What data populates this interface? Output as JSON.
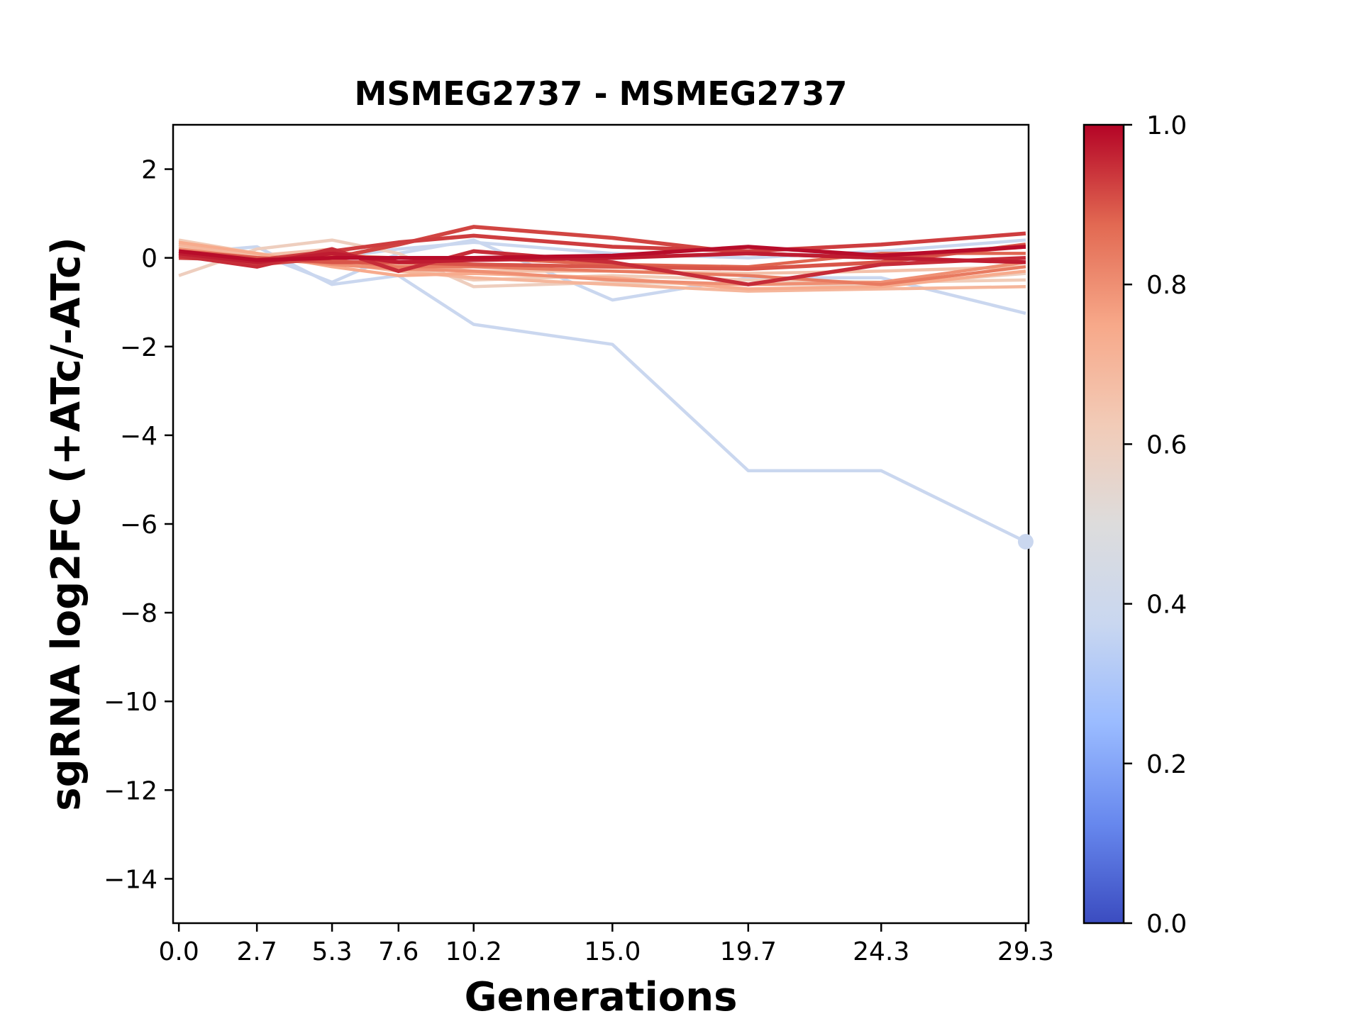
{
  "chart_data": {
    "type": "line",
    "title": "MSMEG2737 - MSMEG2737",
    "xlabel": "Generations",
    "ylabel": "sgRNA log2FC (+ATc/-ATc)",
    "x": [
      0.0,
      2.7,
      5.3,
      7.6,
      10.2,
      15.0,
      19.7,
      24.3,
      29.3
    ],
    "x_tick_labels": [
      "0.0",
      "2.7",
      "5.3",
      "7.6",
      "10.2",
      "15.0",
      "19.7",
      "24.3",
      "29.3"
    ],
    "xlim": [
      -0.2,
      29.4
    ],
    "ylim": [
      -15,
      3
    ],
    "y_ticks": [
      2,
      0,
      -2,
      -4,
      -6,
      -8,
      -10,
      -12,
      -14
    ],
    "y_tick_labels": [
      "2",
      "0",
      "−2",
      "−4",
      "−6",
      "−8",
      "−10",
      "−12",
      "−14"
    ],
    "grid": false,
    "colormap": "coolwarm",
    "colorbar": {
      "range": [
        0.0,
        1.0
      ],
      "ticks": [
        0.0,
        0.2,
        0.4,
        0.6,
        0.8,
        1.0
      ],
      "tick_labels": [
        "0.0",
        "0.2",
        "0.4",
        "0.6",
        "0.8",
        "1.0"
      ],
      "stops": [
        "#3b4cc0",
        "#6788ee",
        "#9abbff",
        "#c9d7f0",
        "#dddcdc",
        "#f2cbb7",
        "#f7a889",
        "#e26952",
        "#b40426"
      ]
    },
    "series": [
      {
        "score": 0.38,
        "values": [
          0.1,
          0.25,
          -0.6,
          -0.4,
          -1.5,
          -1.95,
          -4.8,
          -4.8,
          -6.4
        ],
        "end_marker": true
      },
      {
        "score": 0.38,
        "values": [
          0.2,
          0.1,
          -0.55,
          0.1,
          0.4,
          -0.95,
          -0.45,
          -0.45,
          -1.25
        ]
      },
      {
        "score": 0.38,
        "values": [
          0.3,
          0.0,
          0.0,
          0.2,
          0.35,
          0.1,
          0.0,
          0.15,
          0.4
        ]
      },
      {
        "score": 0.6,
        "values": [
          -0.4,
          0.2,
          0.4,
          0.1,
          -0.65,
          -0.55,
          -0.6,
          -0.6,
          -0.35
        ]
      },
      {
        "score": 0.62,
        "values": [
          0.4,
          0.1,
          -0.1,
          -0.2,
          -0.5,
          -0.4,
          -0.5,
          -0.55,
          -0.5
        ]
      },
      {
        "score": 0.66,
        "values": [
          0.25,
          0.05,
          0.2,
          -0.15,
          -0.3,
          -0.3,
          -0.35,
          -0.3,
          -0.2
        ]
      },
      {
        "score": 0.7,
        "values": [
          0.3,
          0.0,
          -0.1,
          -0.3,
          -0.45,
          -0.6,
          -0.75,
          -0.7,
          -0.65
        ]
      },
      {
        "score": 0.74,
        "values": [
          0.35,
          0.1,
          -0.2,
          -0.4,
          -0.35,
          -0.45,
          -0.7,
          -0.65,
          -0.3
        ]
      },
      {
        "score": 0.8,
        "values": [
          0.2,
          0.0,
          -0.15,
          -0.25,
          -0.3,
          -0.5,
          -0.6,
          -0.55,
          -0.1
        ]
      },
      {
        "score": 0.84,
        "values": [
          0.1,
          -0.05,
          -0.05,
          -0.2,
          -0.2,
          -0.3,
          -0.4,
          -0.6,
          -0.2
        ]
      },
      {
        "score": 0.88,
        "values": [
          0.05,
          -0.1,
          0.05,
          0.0,
          0.0,
          -0.15,
          -0.2,
          0.1,
          0.1
        ]
      },
      {
        "score": 0.9,
        "values": [
          0.15,
          0.0,
          -0.1,
          -0.1,
          -0.15,
          -0.2,
          -0.25,
          -0.1,
          0.3
        ]
      },
      {
        "score": 0.92,
        "values": [
          0.1,
          -0.15,
          0.0,
          0.3,
          0.7,
          0.45,
          0.1,
          0.0,
          0.25
        ]
      },
      {
        "score": 0.93,
        "values": [
          0.0,
          -0.05,
          0.15,
          0.35,
          0.5,
          0.25,
          0.15,
          0.3,
          0.55
        ]
      },
      {
        "score": 0.95,
        "values": [
          0.05,
          -0.2,
          0.2,
          -0.3,
          0.15,
          -0.1,
          -0.6,
          -0.15,
          0.0
        ]
      },
      {
        "score": 0.97,
        "values": [
          0.1,
          -0.1,
          0.1,
          -0.1,
          -0.05,
          0.0,
          0.1,
          0.0,
          -0.1
        ]
      },
      {
        "score": 0.99,
        "values": [
          0.15,
          -0.05,
          0.0,
          0.0,
          0.0,
          0.05,
          0.25,
          0.05,
          0.25
        ]
      }
    ]
  }
}
